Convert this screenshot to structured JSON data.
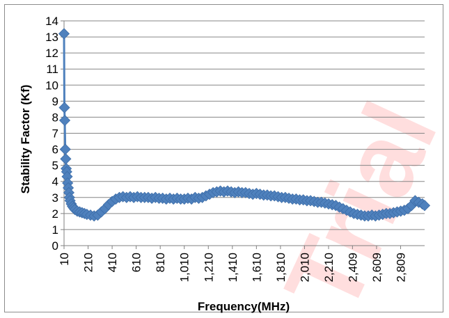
{
  "watermark": "Trial",
  "chart_data": {
    "type": "line",
    "xlabel": "Frequency(MHz)",
    "ylabel": "Stability Factor (Kf)",
    "xlim": [
      10,
      3009
    ],
    "ylim": [
      0,
      14
    ],
    "yticks": [
      "0",
      "1",
      "2",
      "3",
      "4",
      "5",
      "6",
      "7",
      "8",
      "9",
      "10",
      "11",
      "12",
      "13",
      "14"
    ],
    "xtick_values": [
      10,
      210,
      410,
      610,
      810,
      1010,
      1210,
      1410,
      1610,
      1810,
      2010,
      2210,
      2409,
      2609,
      2809
    ],
    "xtick_labels": [
      "10",
      "210",
      "410",
      "610",
      "810",
      "1,010",
      "1,210",
      "1,410",
      "1,610",
      "1,810",
      "2,010",
      "2,210",
      "2,409",
      "2,609",
      "2,809"
    ],
    "grid": "horizontal",
    "marker": "diamond",
    "color": "#4F81BD",
    "series": [
      {
        "x": [
          10,
          13,
          16,
          20,
          24,
          28,
          32,
          36,
          40,
          45,
          50,
          55,
          60,
          70,
          80,
          90,
          100,
          120,
          140,
          160,
          180,
          200,
          230,
          260,
          290,
          320,
          350,
          380,
          410,
          440,
          470,
          500,
          530,
          560,
          590,
          620,
          650,
          680,
          710,
          740,
          770,
          800,
          830,
          860,
          890,
          920,
          950,
          980,
          1010,
          1040,
          1070,
          1100,
          1130,
          1160,
          1190,
          1220,
          1250,
          1280,
          1310,
          1340,
          1370,
          1400,
          1430,
          1460,
          1490,
          1520,
          1550,
          1580,
          1610,
          1640,
          1670,
          1700,
          1730,
          1760,
          1790,
          1820,
          1850,
          1880,
          1910,
          1940,
          1970,
          2000,
          2030,
          2060,
          2090,
          2120,
          2150,
          2180,
          2210,
          2240,
          2270,
          2300,
          2330,
          2360,
          2390,
          2420,
          2450,
          2480,
          2510,
          2540,
          2570,
          2600,
          2630,
          2660,
          2690,
          2720,
          2750,
          2780,
          2810,
          2840,
          2870,
          2900,
          2930,
          2960,
          2990,
          3009
        ],
        "y": [
          13.2,
          8.6,
          7.8,
          6.0,
          5.4,
          4.8,
          4.6,
          4.3,
          3.9,
          3.6,
          3.3,
          3.0,
          2.8,
          2.6,
          2.45,
          2.35,
          2.25,
          2.15,
          2.1,
          2.05,
          2.0,
          1.95,
          1.9,
          1.85,
          1.9,
          2.1,
          2.3,
          2.55,
          2.75,
          2.9,
          3.0,
          3.05,
          3.0,
          3.05,
          3.0,
          3.05,
          3.0,
          3.0,
          3.0,
          2.95,
          3.0,
          2.95,
          2.95,
          2.9,
          2.95,
          2.9,
          2.95,
          2.9,
          2.9,
          2.95,
          2.9,
          3.0,
          2.95,
          3.0,
          3.1,
          3.2,
          3.3,
          3.35,
          3.4,
          3.35,
          3.4,
          3.35,
          3.3,
          3.35,
          3.3,
          3.3,
          3.25,
          3.2,
          3.25,
          3.2,
          3.15,
          3.15,
          3.1,
          3.1,
          3.05,
          3.0,
          3.0,
          2.95,
          2.9,
          2.9,
          2.85,
          2.85,
          2.8,
          2.8,
          2.75,
          2.7,
          2.7,
          2.65,
          2.6,
          2.55,
          2.5,
          2.4,
          2.3,
          2.2,
          2.1,
          2.0,
          1.95,
          1.9,
          1.85,
          1.85,
          1.9,
          1.85,
          1.9,
          1.95,
          2.0,
          2.0,
          2.05,
          2.1,
          2.15,
          2.2,
          2.3,
          2.5,
          2.8,
          2.7,
          2.6,
          2.5
        ]
      }
    ]
  }
}
